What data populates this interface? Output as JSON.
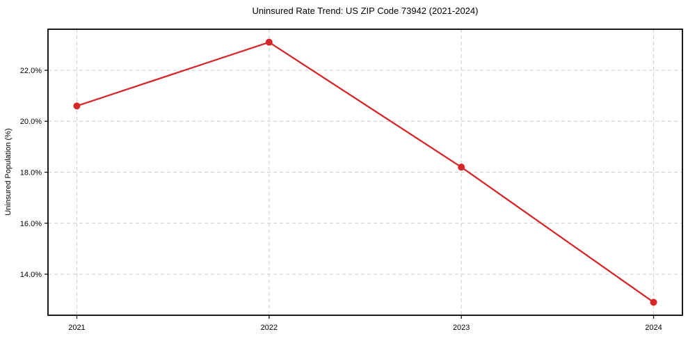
{
  "chart_data": {
    "type": "line",
    "title": "Uninsured Rate Trend: US ZIP Code 73942 (2021-2024)",
    "xlabel": "",
    "ylabel": "Uninsured Population (%)",
    "x": [
      2021,
      2022,
      2023,
      2024
    ],
    "categories": [
      "2021",
      "2022",
      "2023",
      "2024"
    ],
    "series": [
      {
        "name": "Uninsured Population (%)",
        "values": [
          20.6,
          23.1,
          18.2,
          12.9
        ]
      }
    ],
    "xticks": [
      2021,
      2022,
      2023,
      2024
    ],
    "xtick_labels": [
      "2021",
      "2022",
      "2023",
      "2024"
    ],
    "yticks": [
      14.0,
      16.0,
      18.0,
      20.0,
      22.0
    ],
    "ytick_labels": [
      "14.0%",
      "16.0%",
      "18.0%",
      "20.0%",
      "22.0%"
    ],
    "xlim": [
      2020.85,
      2024.15
    ],
    "ylim": [
      12.39,
      23.61
    ],
    "grid": true,
    "grid_style": "dashed",
    "legend": "none",
    "marker": "circle",
    "colors": {
      "line": "#d62728",
      "marker": "#d62728",
      "grid": "#cccccc",
      "axis": "#000000",
      "text": "#000000",
      "background": "#ffffff"
    }
  }
}
